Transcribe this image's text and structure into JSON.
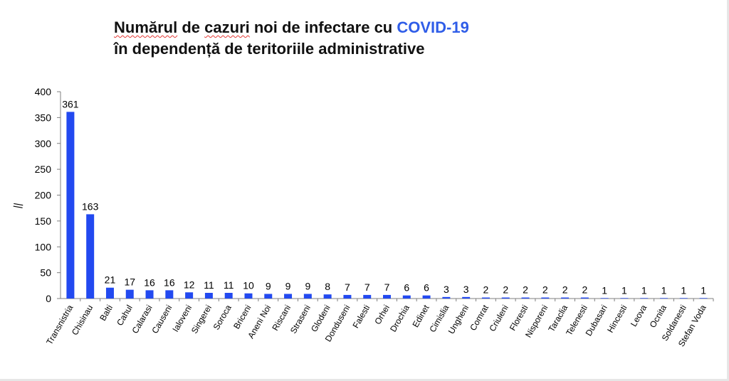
{
  "colors": {
    "accent": "#2f5de8",
    "bar": "#2249f0",
    "axis": "#7f7f7f"
  },
  "title": {
    "line1_word1": "Numărul",
    "line1_rest_a": " de ",
    "line1_word2": "cazuri",
    "line1_rest_b": " noi de infectare cu ",
    "line1_covid": "COVID-19",
    "line2": "în dependență de teritoriile administrative"
  },
  "ylabel_text": "||",
  "chart_data": {
    "type": "bar",
    "title": "Numărul de cazuri noi de infectare cu COVID-19 în dependență de teritoriile administrative",
    "ylim": [
      0,
      400
    ],
    "yticks": [
      0,
      50,
      100,
      150,
      200,
      250,
      300,
      350,
      400
    ],
    "grid": false,
    "categories": [
      "Transnistria",
      "Chisinau",
      "Balti",
      "Cahul",
      "Calarasi",
      "Causeni",
      "Ialoveni",
      "Singerei",
      "Soroca",
      "Briceni",
      "Aneni Noi",
      "Riscani",
      "Straseni",
      "Glodeni",
      "Donduseni",
      "Falesti",
      "Orhei",
      "Drochia",
      "Edinet",
      "Cimislia",
      "Ungheni",
      "Comrat",
      "Criuleni",
      "Floresti",
      "Nisporeni",
      "Taraclia",
      "Telenesti",
      "Dubasari",
      "Hincesti",
      "Leova",
      "Ocnita",
      "Soldanesti",
      "Stefan Voda"
    ],
    "values": [
      361,
      163,
      21,
      17,
      16,
      16,
      12,
      11,
      11,
      10,
      9,
      9,
      9,
      8,
      7,
      7,
      7,
      6,
      6,
      3,
      3,
      2,
      2,
      2,
      2,
      2,
      2,
      1,
      1,
      1,
      1,
      1,
      1
    ]
  }
}
